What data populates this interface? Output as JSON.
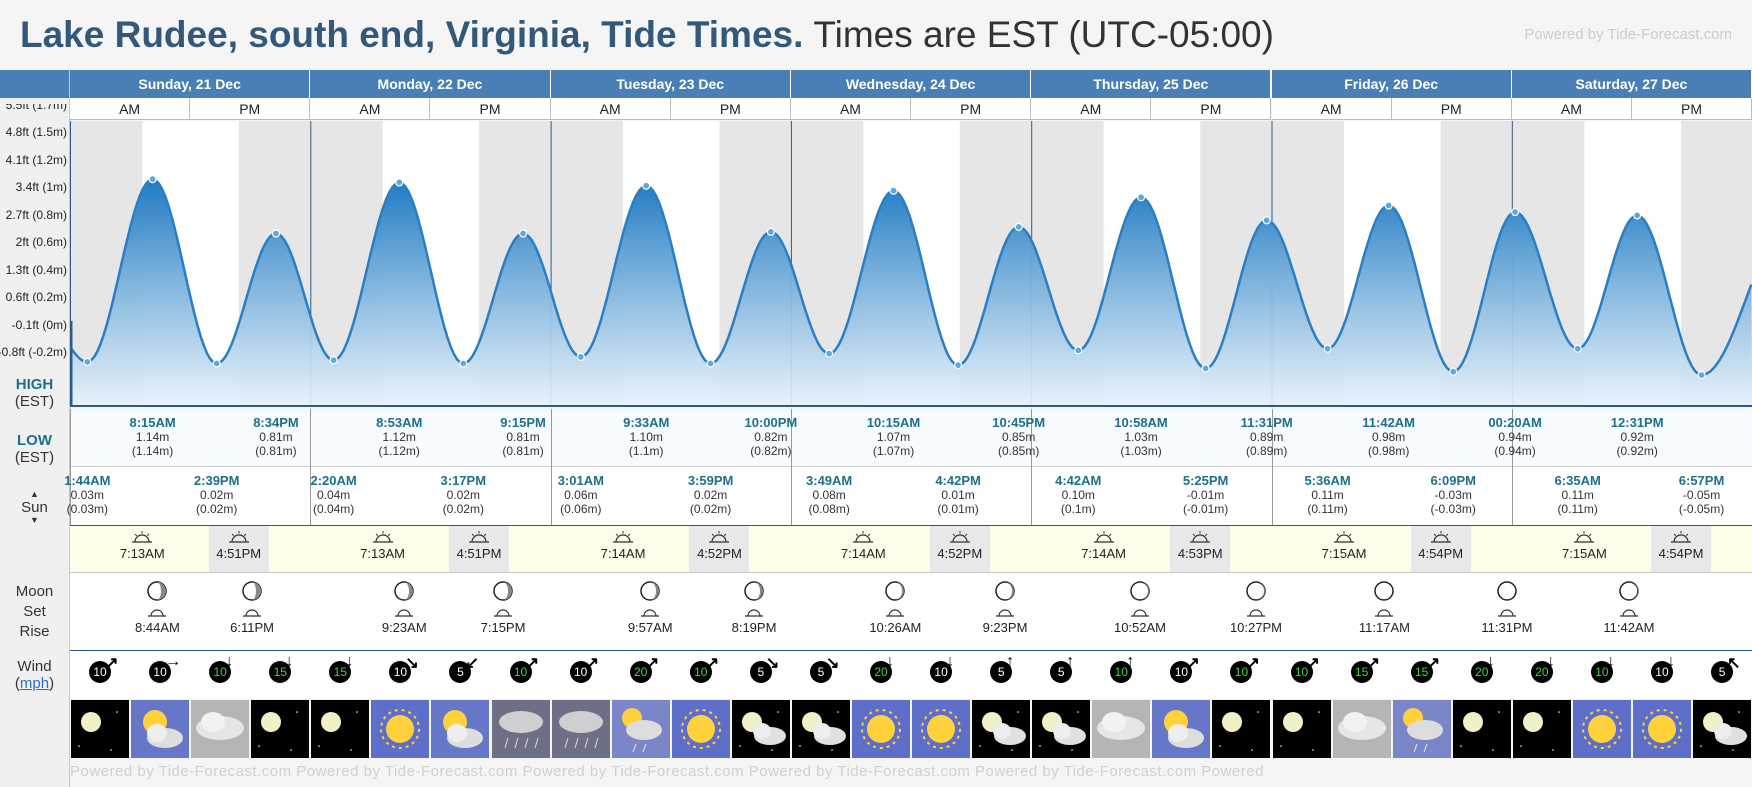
{
  "header": {
    "location": "Lake Rudee, south end, Virginia, Tide Times.",
    "timezone": "Times are EST (UTC-05:00)",
    "powered": "Powered by Tide-Forecast.com",
    "powered_bottom": "Powered by Tide-Forecast.com      Powered by Tide-Forecast.com      Powered by Tide-Forecast.com      Powered by Tide-Forecast.com      Powered by Tide-Forecast.com      Powered"
  },
  "labels": {
    "high": "HIGH",
    "high_tz": "(EST)",
    "low": "LOW",
    "low_tz": "(EST)",
    "sun": "Sun",
    "moon": "Moon",
    "set": "Set",
    "rise": "Rise",
    "wind": "Wind",
    "wind_unit": "mph",
    "am": "AM",
    "pm": "PM"
  },
  "y_axis": [
    "5.5ft (1.7m)",
    "4.8ft (1.5m)",
    "4.1ft (1.2m)",
    "3.4ft (1m)",
    "2.7ft (0.8m)",
    "2ft (0.6m)",
    "1.3ft (0.4m)",
    "0.6ft (0.2m)",
    "-0.1ft (0m)",
    "-0.8ft (-0.2m)"
  ],
  "days": [
    {
      "label": "Sunday, 21 Dec"
    },
    {
      "label": "Monday, 22 Dec"
    },
    {
      "label": "Tuesday, 23 Dec"
    },
    {
      "label": "Wednesday, 24 Dec"
    },
    {
      "label": "Thursday, 25 Dec"
    },
    {
      "label": "Friday, 26 Dec"
    },
    {
      "label": "Saturday, 27 Dec"
    }
  ],
  "highs": [
    {
      "time": "8:15AM",
      "m": "1.14m",
      "mp": "(1.14m)",
      "hour": 8.25,
      "day": 0
    },
    {
      "time": "8:34PM",
      "m": "0.81m",
      "mp": "(0.81m)",
      "hour": 20.57,
      "day": 0
    },
    {
      "time": "8:53AM",
      "m": "1.12m",
      "mp": "(1.12m)",
      "hour": 8.88,
      "day": 1
    },
    {
      "time": "9:15PM",
      "m": "0.81m",
      "mp": "(0.81m)",
      "hour": 21.25,
      "day": 1
    },
    {
      "time": "9:33AM",
      "m": "1.10m",
      "mp": "(1.1m)",
      "hour": 9.55,
      "day": 2
    },
    {
      "time": "10:00PM",
      "m": "0.82m",
      "mp": "(0.82m)",
      "hour": 22.0,
      "day": 2
    },
    {
      "time": "10:15AM",
      "m": "1.07m",
      "mp": "(1.07m)",
      "hour": 10.25,
      "day": 3
    },
    {
      "time": "10:45PM",
      "m": "0.85m",
      "mp": "(0.85m)",
      "hour": 22.75,
      "day": 3
    },
    {
      "time": "10:58AM",
      "m": "1.03m",
      "mp": "(1.03m)",
      "hour": 10.97,
      "day": 4
    },
    {
      "time": "11:31PM",
      "m": "0.89m",
      "mp": "(0.89m)",
      "hour": 23.52,
      "day": 4
    },
    {
      "time": "11:42AM",
      "m": "0.98m",
      "mp": "(0.98m)",
      "hour": 11.7,
      "day": 5
    },
    {
      "time": "00:20AM",
      "m": "0.94m",
      "mp": "(0.94m)",
      "hour": 0.33,
      "day": 6
    },
    {
      "time": "12:31PM",
      "m": "0.92m",
      "mp": "(0.92m)",
      "hour": 12.52,
      "day": 6
    }
  ],
  "lows": [
    {
      "time": "1:44AM",
      "m": "0.03m",
      "mp": "(0.03m)",
      "hour": 1.73,
      "day": 0
    },
    {
      "time": "2:39PM",
      "m": "0.02m",
      "mp": "(0.02m)",
      "hour": 14.65,
      "day": 0
    },
    {
      "time": "2:20AM",
      "m": "0.04m",
      "mp": "(0.04m)",
      "hour": 2.33,
      "day": 1
    },
    {
      "time": "3:17PM",
      "m": "0.02m",
      "mp": "(0.02m)",
      "hour": 15.28,
      "day": 1
    },
    {
      "time": "3:01AM",
      "m": "0.06m",
      "mp": "(0.06m)",
      "hour": 3.02,
      "day": 2
    },
    {
      "time": "3:59PM",
      "m": "0.02m",
      "mp": "(0.02m)",
      "hour": 15.98,
      "day": 2
    },
    {
      "time": "3:49AM",
      "m": "0.08m",
      "mp": "(0.08m)",
      "hour": 3.82,
      "day": 3
    },
    {
      "time": "4:42PM",
      "m": "0.01m",
      "mp": "(0.01m)",
      "hour": 16.7,
      "day": 3
    },
    {
      "time": "4:42AM",
      "m": "0.10m",
      "mp": "(0.1m)",
      "hour": 4.7,
      "day": 4
    },
    {
      "time": "5:25PM",
      "m": "-0.01m",
      "mp": "(-0.01m)",
      "hour": 17.42,
      "day": 4
    },
    {
      "time": "5:36AM",
      "m": "0.11m",
      "mp": "(0.11m)",
      "hour": 5.6,
      "day": 5
    },
    {
      "time": "6:09PM",
      "m": "-0.03m",
      "mp": "(-0.03m)",
      "hour": 18.15,
      "day": 5
    },
    {
      "time": "6:35AM",
      "m": "0.11m",
      "mp": "(0.11m)",
      "hour": 6.58,
      "day": 6
    },
    {
      "time": "6:57PM",
      "m": "-0.05m",
      "mp": "(-0.05m)",
      "hour": 18.95,
      "day": 6
    }
  ],
  "sun": [
    {
      "rise": "7:13AM",
      "set": "4:51PM"
    },
    {
      "rise": "7:13AM",
      "set": "4:51PM"
    },
    {
      "rise": "7:14AM",
      "set": "4:52PM"
    },
    {
      "rise": "7:14AM",
      "set": "4:52PM"
    },
    {
      "rise": "7:14AM",
      "set": "4:53PM"
    },
    {
      "rise": "7:15AM",
      "set": "4:54PM"
    },
    {
      "rise": "7:15AM",
      "set": "4:54PM"
    }
  ],
  "moon": [
    {
      "rise": "8:44AM",
      "set": "6:11PM"
    },
    {
      "rise": "9:23AM",
      "set": "7:15PM"
    },
    {
      "rise": "9:57AM",
      "set": "8:19PM"
    },
    {
      "rise": "10:26AM",
      "set": "9:23PM"
    },
    {
      "rise": "10:52AM",
      "set": "10:27PM"
    },
    {
      "rise": "11:17AM",
      "set": "11:31PM"
    },
    {
      "rise": "11:42AM",
      "set": ""
    }
  ],
  "wind": [
    "10",
    "10",
    "10",
    "15",
    "15",
    "10",
    "5",
    "10",
    "10",
    "20",
    "10",
    "5",
    "5",
    "20",
    "10",
    "5",
    "5",
    "10",
    "10",
    "10",
    "10",
    "15",
    "15",
    "20",
    "20",
    "10",
    "10",
    "5"
  ],
  "weather": [
    "night-clear",
    "partly-cloudy-sun",
    "overcast",
    "night-clear",
    "night-clear",
    "sunny",
    "partly-cloudy-sun",
    "rain",
    "rain",
    "sun-rain",
    "sunny",
    "night-cloudy",
    "night-cloudy",
    "sunny",
    "sunny",
    "night-cloudy",
    "night-cloudy",
    "overcast",
    "partly-cloudy-sun",
    "night-clear",
    "night-clear",
    "overcast",
    "sun-rain",
    "night-clear",
    "night-clear",
    "sunny",
    "sunny",
    "night-cloudy"
  ],
  "colors": {
    "header_blue": "#4a7fb5",
    "tide_line": "#2a7fc4",
    "title_blue": "#32587a",
    "high_low_text": "#1f6f8b"
  }
}
